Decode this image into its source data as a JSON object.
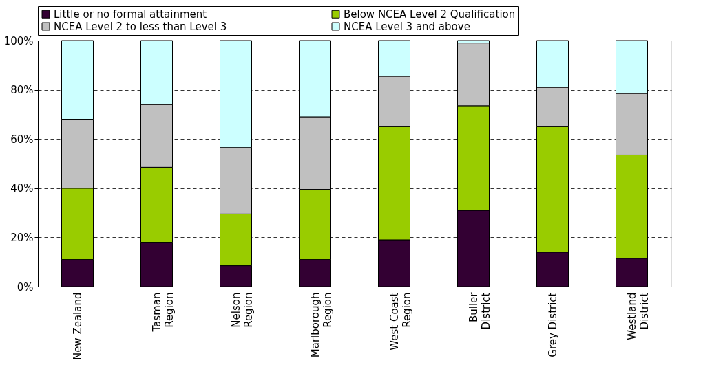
{
  "chart_data": {
    "type": "bar",
    "stacked": true,
    "categories": [
      "New Zealand",
      "Tasman\nRegion",
      "Nelson\nRegion",
      "Marlborough\nRegion",
      "West Coast\nRegion",
      "Buller\nDistrict",
      "Grey District",
      "Westland\nDistrict"
    ],
    "series": [
      {
        "name": "Little or no formal attainment",
        "color": "#330033",
        "values": [
          11,
          18,
          8.5,
          11,
          19,
          31,
          14,
          11.5
        ]
      },
      {
        "name": "Below NCEA Level 2 Qualification",
        "color": "#99cc00",
        "values": [
          29,
          30.5,
          21,
          28.5,
          46,
          42.5,
          51,
          42
        ]
      },
      {
        "name": "NCEA Level 2 to less than Level 3",
        "color": "#c0c0c0",
        "values": [
          28,
          25.5,
          27,
          29.5,
          20.5,
          25.5,
          16,
          25
        ]
      },
      {
        "name": "NCEA Level 3 and above",
        "color": "#ccffff",
        "values": [
          32,
          26,
          43.5,
          31,
          14.5,
          1,
          19,
          21.5
        ]
      }
    ],
    "ylim": [
      0,
      100
    ],
    "yticks": [
      {
        "value": 0,
        "label": "0%"
      },
      {
        "value": 20,
        "label": "20%"
      },
      {
        "value": 40,
        "label": "40%"
      },
      {
        "value": 60,
        "label": "60%"
      },
      {
        "value": 80,
        "label": "80%"
      },
      {
        "value": 100,
        "label": "100%"
      }
    ],
    "grid": "y",
    "legend": "top"
  }
}
